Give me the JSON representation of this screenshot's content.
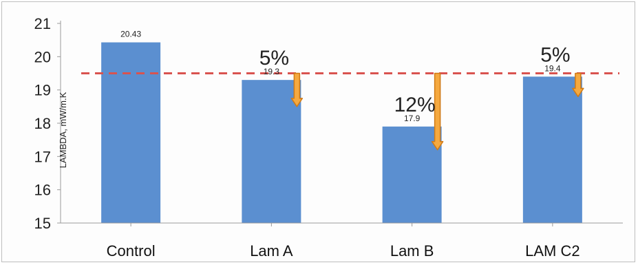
{
  "chart_data": {
    "type": "bar",
    "categories": [
      "Control",
      "Lam A",
      "Lam B",
      "LAM C2"
    ],
    "values": [
      20.43,
      19.3,
      17.9,
      19.4
    ],
    "data_labels": [
      "20.43",
      "19.3",
      "17.9",
      "19.4"
    ],
    "title": "",
    "xlabel": "",
    "ylabel": "LAMBDA, mW/m.K",
    "ylim": [
      15,
      21
    ],
    "yticks": [
      15,
      16,
      17,
      18,
      19,
      20,
      21
    ],
    "grid": false,
    "legend": "none",
    "reference_line": {
      "value": 19.5,
      "style": "dashed",
      "color": "#d9534f"
    },
    "annotations": [
      {
        "category": "Lam A",
        "text": "5%",
        "from": 19.5,
        "to": 18.5
      },
      {
        "category": "Lam B",
        "text": "12%",
        "from": 19.5,
        "to": 17.2
      },
      {
        "category": "LAM C2",
        "text": "5%",
        "from": 19.5,
        "to": 18.8
      }
    ],
    "colors": {
      "bar": "#5b8fd0",
      "arrow_fill": "#f5a93f",
      "arrow_stroke": "#d07a15",
      "ref_line": "#d9534f"
    }
  }
}
